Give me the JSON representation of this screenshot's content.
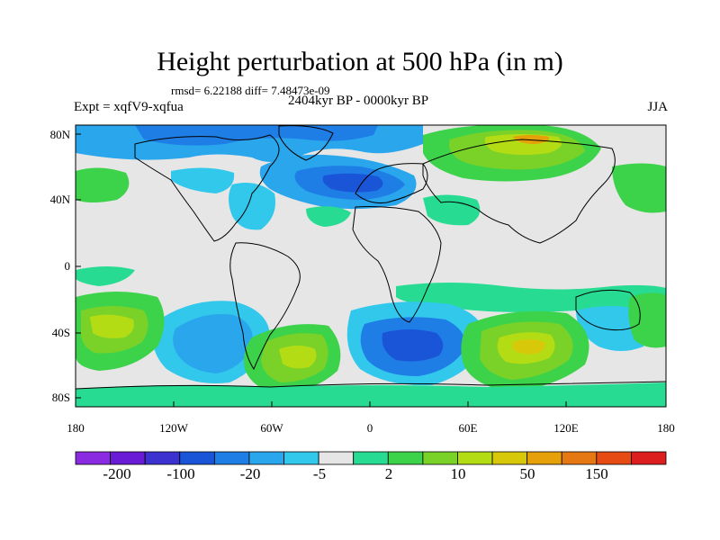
{
  "figure": {
    "title": "Height perturbation at 500 hPa (in m)",
    "stats": "rmsd= 6.22188 diff= 7.48473e-09",
    "experiment": "Expt = xqfV9-xqfua",
    "period": "2404kyr BP - 0000kyr BP",
    "season": "JJA"
  },
  "map": {
    "lat_ticks": [
      "80N",
      "40N",
      "0",
      "40S",
      "80S"
    ],
    "lon_ticks": [
      "180",
      "120W",
      "60W",
      "0",
      "60E",
      "120E",
      "180"
    ],
    "colors": {
      "land_line": "#000000",
      "background": "#e6e6e6"
    }
  },
  "colorbar": {
    "colors": [
      "#8a2be2",
      "#6a1bd6",
      "#3c32d0",
      "#1a55d8",
      "#1e7ee6",
      "#29a6ec",
      "#32c8ec",
      "#e6e6e6",
      "#27dc92",
      "#3cd24a",
      "#7ad228",
      "#b4dc14",
      "#d8c80a",
      "#e6a00a",
      "#e67814",
      "#e64b14",
      "#dc1e1e"
    ],
    "labels": [
      "-200",
      "-100",
      "-20",
      "-5",
      "2",
      "10",
      "50",
      "150"
    ]
  }
}
